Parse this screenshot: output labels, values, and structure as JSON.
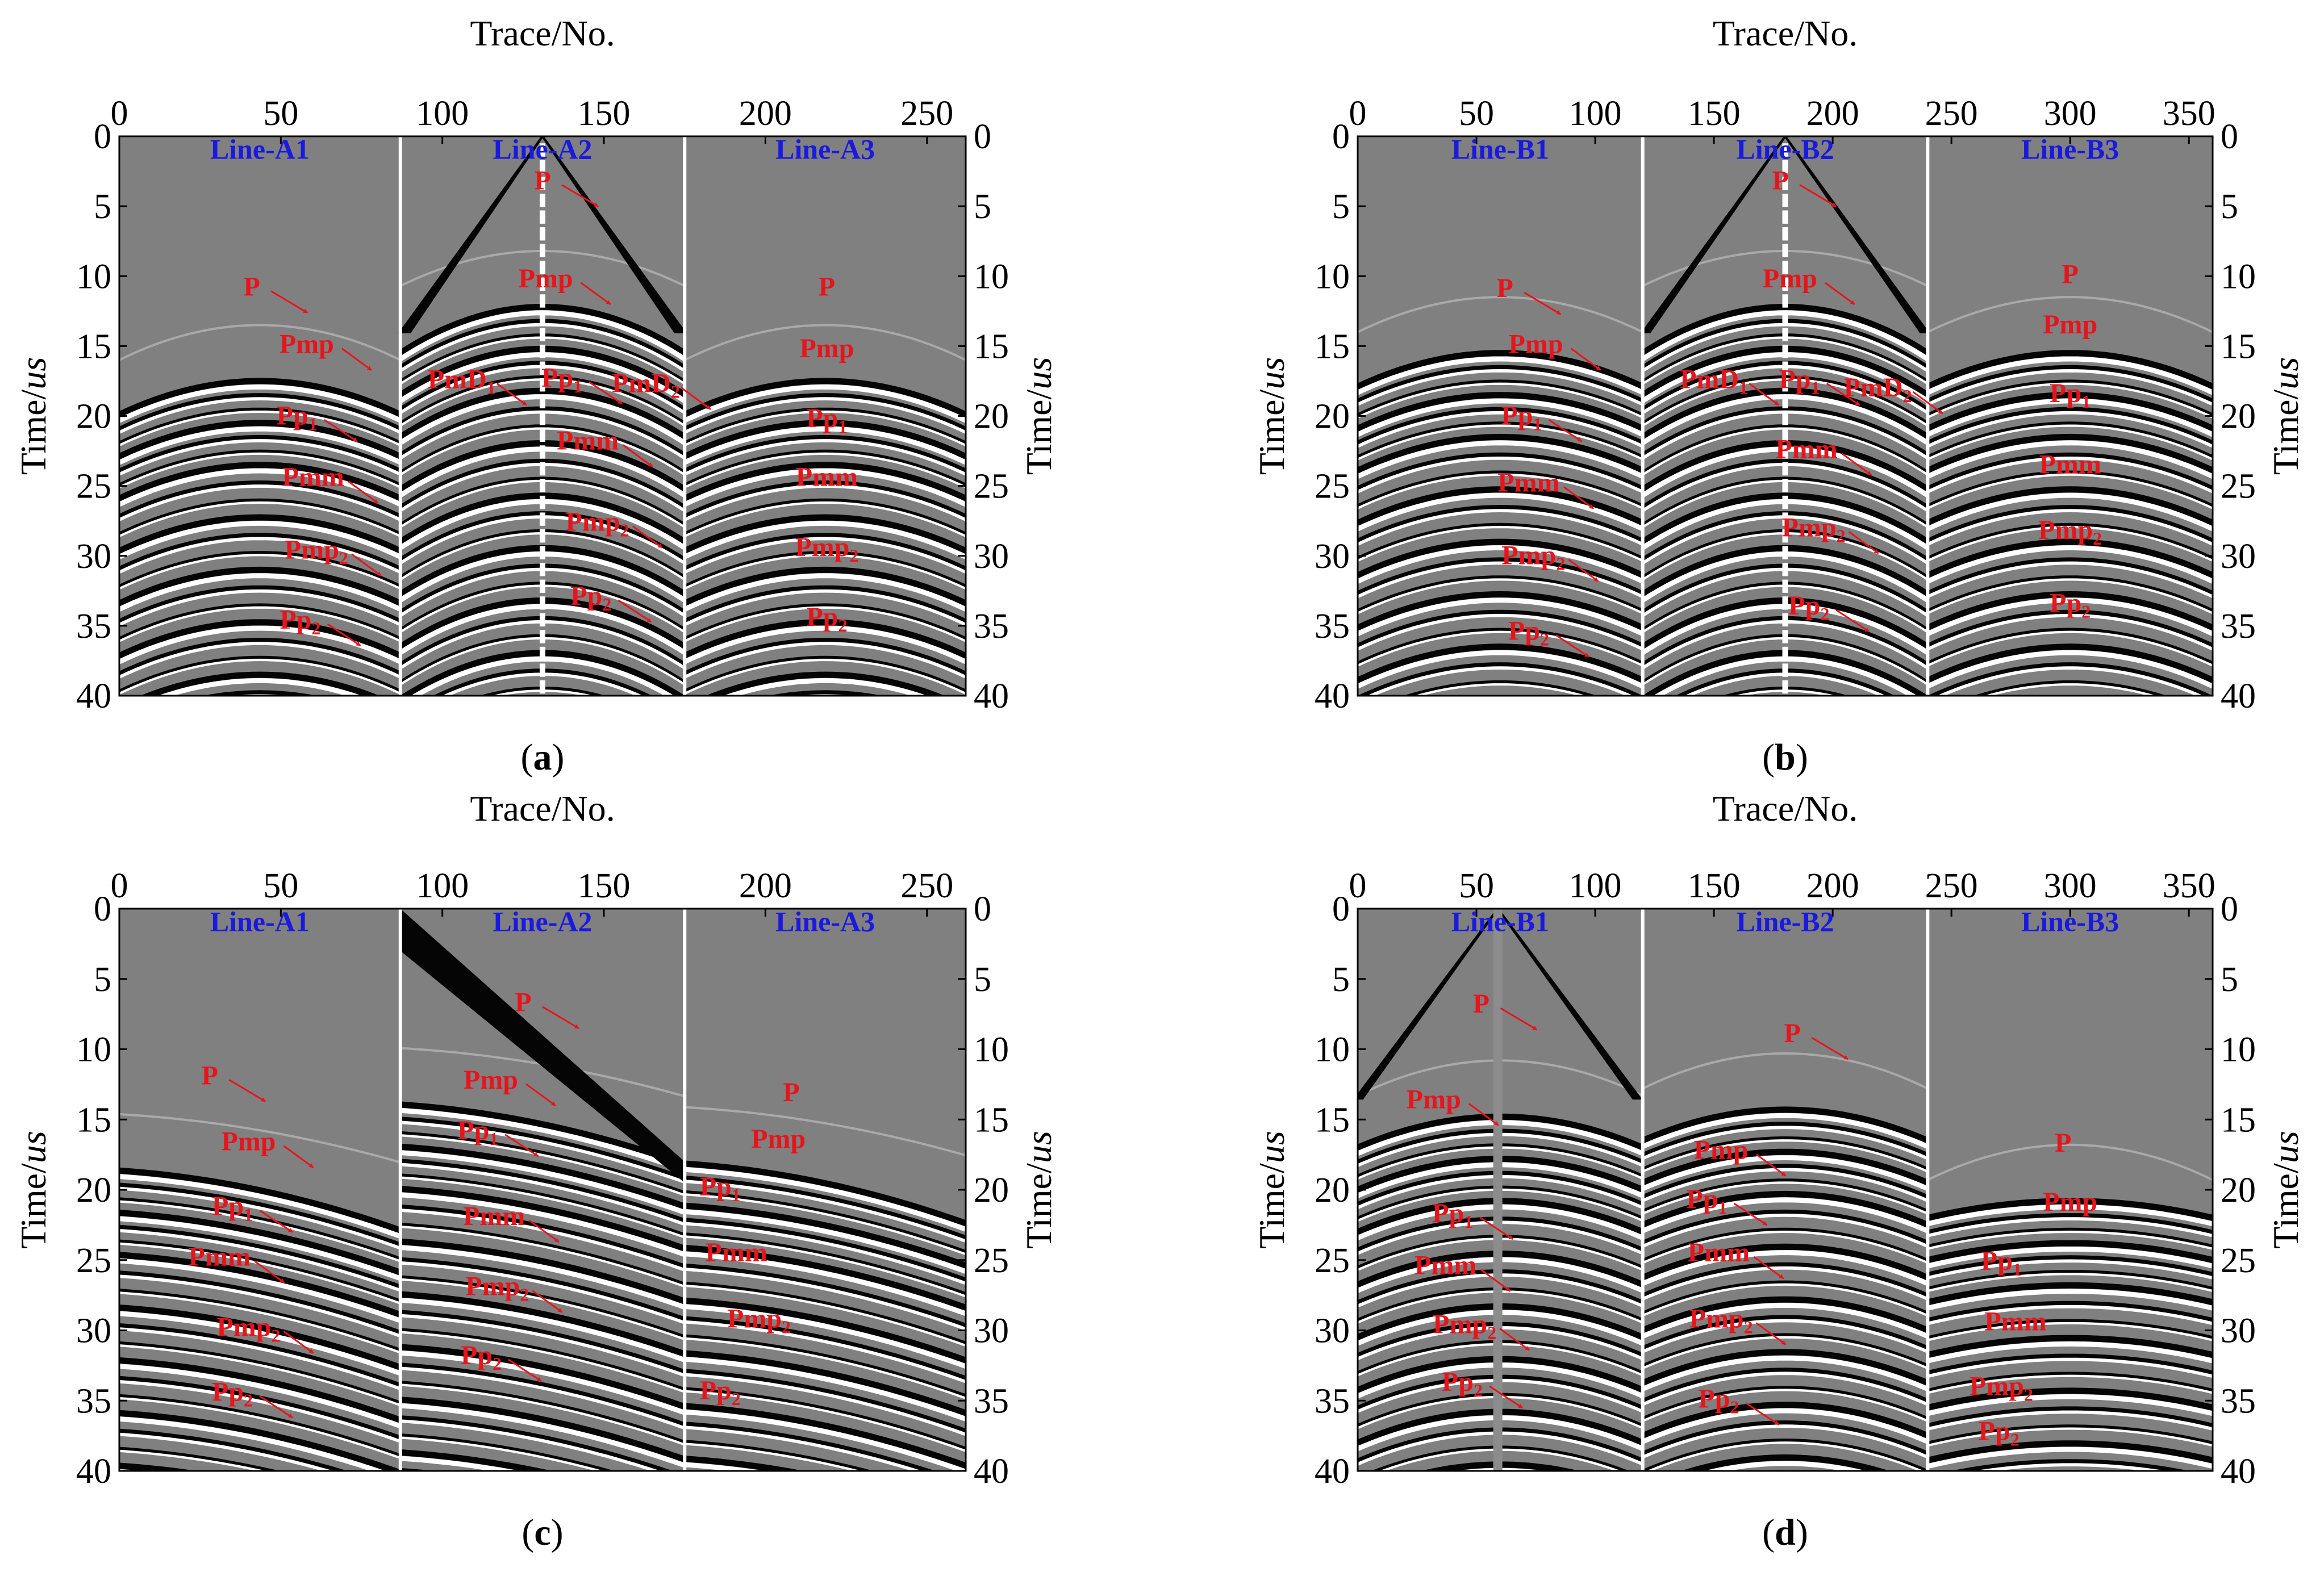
{
  "figure": {
    "axis_titles": {
      "x": "Trace/No.",
      "y_left": "Time/",
      "y_unit": "us",
      "y_right": "Time/",
      "y_right_unit": "us"
    },
    "colors": {
      "wave_dark": "#050505",
      "wave_light": "#ffffff",
      "background_gray": "#808080",
      "annotation_red": "#e8141b",
      "line_label_blue": "#1a1adf",
      "axis": "#000000"
    }
  },
  "chart_data": [
    {
      "type": "heatmap",
      "panel": "(a)",
      "caption_letter": "a",
      "xlabel": "Trace/No.",
      "ylabel": "Time/us",
      "xlim": [
        0,
        262
      ],
      "ylim": [
        40,
        0
      ],
      "xticks": [
        0,
        50,
        100,
        150,
        200,
        250
      ],
      "yticks": [
        0,
        5,
        10,
        15,
        20,
        25,
        30,
        35,
        40
      ],
      "source_mode": "center",
      "lines": [
        {
          "name": "Line-A1",
          "x_range": [
            0,
            87
          ]
        },
        {
          "name": "Line-A2",
          "x_range": [
            87,
            175
          ]
        },
        {
          "name": "Line-A3",
          "x_range": [
            175,
            262
          ]
        }
      ],
      "annotations": [
        {
          "text": "P",
          "sub": "",
          "x": 131,
          "t": 3.8,
          "line": 1,
          "arrow": true
        },
        {
          "text": "P",
          "sub": "",
          "x": 41,
          "t": 11.4,
          "line": 0,
          "arrow": true
        },
        {
          "text": "Pmp",
          "sub": "",
          "x": 58,
          "t": 15.5,
          "line": 0,
          "arrow": true
        },
        {
          "text": "Pp",
          "sub": "1",
          "x": 55,
          "t": 20.6,
          "line": 0,
          "arrow": true
        },
        {
          "text": "Pmm",
          "sub": "",
          "x": 60,
          "t": 25.0,
          "line": 0,
          "arrow": true
        },
        {
          "text": "Pmp",
          "sub": "2",
          "x": 61,
          "t": 30.2,
          "line": 0,
          "arrow": true
        },
        {
          "text": "Pp",
          "sub": "2",
          "x": 56,
          "t": 35.2,
          "line": 0,
          "arrow": true
        },
        {
          "text": "Pmp",
          "sub": "",
          "x": 132,
          "t": 10.8,
          "line": 1,
          "arrow": true
        },
        {
          "text": "PmD",
          "sub": "1",
          "x": 106,
          "t": 18.0,
          "line": 1,
          "arrow": true
        },
        {
          "text": "Pp",
          "sub": "1",
          "x": 137,
          "t": 17.9,
          "line": 1,
          "arrow": true
        },
        {
          "text": "PmD",
          "sub": "2",
          "x": 163,
          "t": 18.3,
          "line": 1,
          "arrow": true
        },
        {
          "text": "Pmm",
          "sub": "",
          "x": 145,
          "t": 22.4,
          "line": 1,
          "arrow": true
        },
        {
          "text": "Pmp",
          "sub": "2",
          "x": 148,
          "t": 28.2,
          "line": 1,
          "arrow": true
        },
        {
          "text": "Pp",
          "sub": "2",
          "x": 146,
          "t": 33.5,
          "line": 1,
          "arrow": true
        },
        {
          "text": "P",
          "sub": "",
          "x": 219,
          "t": 11.4,
          "line": 2,
          "arrow": false
        },
        {
          "text": "Pmp",
          "sub": "",
          "x": 219,
          "t": 15.8,
          "line": 2,
          "arrow": false
        },
        {
          "text": "Pp",
          "sub": "1",
          "x": 219,
          "t": 20.8,
          "line": 2,
          "arrow": false
        },
        {
          "text": "Pmm",
          "sub": "",
          "x": 219,
          "t": 25.0,
          "line": 2,
          "arrow": false
        },
        {
          "text": "Pmp",
          "sub": "2",
          "x": 219,
          "t": 30.0,
          "line": 2,
          "arrow": false
        },
        {
          "text": "Pp",
          "sub": "2",
          "x": 219,
          "t": 35.0,
          "line": 2,
          "arrow": false
        }
      ]
    },
    {
      "type": "heatmap",
      "panel": "(b)",
      "caption_letter": "b",
      "xlabel": "Trace/No.",
      "ylabel": "Time/us",
      "xlim": [
        0,
        360
      ],
      "ylim": [
        40,
        0
      ],
      "xticks": [
        0,
        50,
        100,
        150,
        200,
        250,
        300,
        350
      ],
      "yticks": [
        0,
        5,
        10,
        15,
        20,
        25,
        30,
        35,
        40
      ],
      "source_mode": "center",
      "lines": [
        {
          "name": "Line-B1",
          "x_range": [
            0,
            120
          ]
        },
        {
          "name": "Line-B2",
          "x_range": [
            120,
            240
          ]
        },
        {
          "name": "Line-B3",
          "x_range": [
            240,
            360
          ]
        }
      ],
      "annotations": [
        {
          "text": "P",
          "sub": "",
          "x": 178,
          "t": 3.8,
          "line": 1,
          "arrow": true
        },
        {
          "text": "P",
          "sub": "",
          "x": 62,
          "t": 11.5,
          "line": 0,
          "arrow": true
        },
        {
          "text": "Pmp",
          "sub": "",
          "x": 75,
          "t": 15.5,
          "line": 0,
          "arrow": true
        },
        {
          "text": "Pp",
          "sub": "1",
          "x": 69,
          "t": 20.6,
          "line": 0,
          "arrow": true
        },
        {
          "text": "Pmm",
          "sub": "",
          "x": 72,
          "t": 25.4,
          "line": 0,
          "arrow": true
        },
        {
          "text": "Pmp",
          "sub": "2",
          "x": 74,
          "t": 30.6,
          "line": 0,
          "arrow": true
        },
        {
          "text": "Pp",
          "sub": "2",
          "x": 72,
          "t": 36.0,
          "line": 0,
          "arrow": true
        },
        {
          "text": "Pmp",
          "sub": "",
          "x": 182,
          "t": 10.8,
          "line": 1,
          "arrow": true
        },
        {
          "text": "PmD",
          "sub": "1",
          "x": 150,
          "t": 18.0,
          "line": 1,
          "arrow": true
        },
        {
          "text": "Pp",
          "sub": "1",
          "x": 186,
          "t": 18.0,
          "line": 1,
          "arrow": true
        },
        {
          "text": "PmD",
          "sub": "2",
          "x": 219,
          "t": 18.6,
          "line": 1,
          "arrow": true
        },
        {
          "text": "Pmm",
          "sub": "",
          "x": 189,
          "t": 23.0,
          "line": 1,
          "arrow": true
        },
        {
          "text": "Pmp",
          "sub": "2",
          "x": 192,
          "t": 28.6,
          "line": 1,
          "arrow": true
        },
        {
          "text": "Pp",
          "sub": "2",
          "x": 190,
          "t": 34.2,
          "line": 1,
          "arrow": true
        },
        {
          "text": "P",
          "sub": "",
          "x": 300,
          "t": 10.5,
          "line": 2,
          "arrow": false
        },
        {
          "text": "Pmp",
          "sub": "",
          "x": 300,
          "t": 14.1,
          "line": 2,
          "arrow": false
        },
        {
          "text": "Pp",
          "sub": "1",
          "x": 300,
          "t": 19.0,
          "line": 2,
          "arrow": false
        },
        {
          "text": "Pmm",
          "sub": "",
          "x": 300,
          "t": 24.1,
          "line": 2,
          "arrow": false
        },
        {
          "text": "Pmp",
          "sub": "2",
          "x": 300,
          "t": 28.8,
          "line": 2,
          "arrow": false
        },
        {
          "text": "Pp",
          "sub": "2",
          "x": 300,
          "t": 34.0,
          "line": 2,
          "arrow": false
        }
      ]
    },
    {
      "type": "heatmap",
      "panel": "(c)",
      "caption_letter": "c",
      "xlabel": "Trace/No.",
      "ylabel": "Time/us",
      "xlim": [
        0,
        262
      ],
      "ylim": [
        40,
        0
      ],
      "xticks": [
        0,
        50,
        100,
        150,
        200,
        250
      ],
      "yticks": [
        0,
        5,
        10,
        15,
        20,
        25,
        30,
        35,
        40
      ],
      "source_mode": "left",
      "lines": [
        {
          "name": "Line-A1",
          "x_range": [
            0,
            87
          ]
        },
        {
          "name": "Line-A2",
          "x_range": [
            87,
            175
          ]
        },
        {
          "name": "Line-A3",
          "x_range": [
            175,
            262
          ]
        }
      ],
      "annotations": [
        {
          "text": "P",
          "sub": "",
          "x": 125,
          "t": 7.3,
          "line": 1,
          "arrow": true
        },
        {
          "text": "P",
          "sub": "",
          "x": 28,
          "t": 12.5,
          "line": 0,
          "arrow": true
        },
        {
          "text": "Pmp",
          "sub": "",
          "x": 40,
          "t": 17.2,
          "line": 0,
          "arrow": true
        },
        {
          "text": "Pp",
          "sub": "1",
          "x": 35,
          "t": 21.8,
          "line": 0,
          "arrow": true
        },
        {
          "text": "Pmm",
          "sub": "",
          "x": 31,
          "t": 25.4,
          "line": 0,
          "arrow": true
        },
        {
          "text": "Pmp",
          "sub": "2",
          "x": 40,
          "t": 30.4,
          "line": 0,
          "arrow": true
        },
        {
          "text": "Pp",
          "sub": "2",
          "x": 35,
          "t": 35.0,
          "line": 0,
          "arrow": true
        },
        {
          "text": "Pmp",
          "sub": "",
          "x": 115,
          "t": 12.8,
          "line": 1,
          "arrow": true
        },
        {
          "text": "Pp",
          "sub": "1",
          "x": 111,
          "t": 16.4,
          "line": 1,
          "arrow": true
        },
        {
          "text": "Pmm",
          "sub": "",
          "x": 116,
          "t": 22.5,
          "line": 1,
          "arrow": true
        },
        {
          "text": "Pmp",
          "sub": "2",
          "x": 117,
          "t": 27.5,
          "line": 1,
          "arrow": true
        },
        {
          "text": "Pp",
          "sub": "2",
          "x": 112,
          "t": 32.4,
          "line": 1,
          "arrow": true
        },
        {
          "text": "P",
          "sub": "",
          "x": 208,
          "t": 13.7,
          "line": 2,
          "arrow": false
        },
        {
          "text": "Pmp",
          "sub": "",
          "x": 204,
          "t": 17.0,
          "line": 2,
          "arrow": false
        },
        {
          "text": "Pp",
          "sub": "1",
          "x": 186,
          "t": 20.4,
          "line": 2,
          "arrow": false
        },
        {
          "text": "Pmm",
          "sub": "",
          "x": 191,
          "t": 25.1,
          "line": 2,
          "arrow": false
        },
        {
          "text": "Pmp",
          "sub": "2",
          "x": 198,
          "t": 29.8,
          "line": 2,
          "arrow": false
        },
        {
          "text": "Pp",
          "sub": "2",
          "x": 186,
          "t": 34.9,
          "line": 2,
          "arrow": false
        }
      ]
    },
    {
      "type": "heatmap",
      "panel": "(d)",
      "caption_letter": "d",
      "xlabel": "Trace/No.",
      "ylabel": "Time/us",
      "xlim": [
        0,
        360
      ],
      "ylim": [
        40,
        0
      ],
      "xticks": [
        0,
        50,
        100,
        150,
        200,
        250,
        300,
        350
      ],
      "yticks": [
        0,
        5,
        10,
        15,
        20,
        25,
        30,
        35,
        40
      ],
      "source_mode": "b1",
      "lines": [
        {
          "name": "Line-B1",
          "x_range": [
            0,
            120
          ]
        },
        {
          "name": "Line-B2",
          "x_range": [
            120,
            240
          ]
        },
        {
          "name": "Line-B3",
          "x_range": [
            240,
            360
          ]
        }
      ],
      "annotations": [
        {
          "text": "P",
          "sub": "",
          "x": 52,
          "t": 7.4,
          "line": 0,
          "arrow": true
        },
        {
          "text": "Pmp",
          "sub": "",
          "x": 32,
          "t": 14.2,
          "line": 0,
          "arrow": true
        },
        {
          "text": "Pp",
          "sub": "1",
          "x": 40,
          "t": 22.3,
          "line": 0,
          "arrow": true
        },
        {
          "text": "Pmm",
          "sub": "",
          "x": 37,
          "t": 26.0,
          "line": 0,
          "arrow": true
        },
        {
          "text": "Pmp",
          "sub": "2",
          "x": 45,
          "t": 30.2,
          "line": 0,
          "arrow": true
        },
        {
          "text": "Pp",
          "sub": "2",
          "x": 44,
          "t": 34.3,
          "line": 0,
          "arrow": true
        },
        {
          "text": "P",
          "sub": "",
          "x": 183,
          "t": 9.5,
          "line": 1,
          "arrow": true
        },
        {
          "text": "Pmp",
          "sub": "",
          "x": 153,
          "t": 17.8,
          "line": 1,
          "arrow": true
        },
        {
          "text": "Pp",
          "sub": "1",
          "x": 147,
          "t": 21.3,
          "line": 1,
          "arrow": true
        },
        {
          "text": "Pmm",
          "sub": "",
          "x": 152,
          "t": 25.1,
          "line": 1,
          "arrow": true
        },
        {
          "text": "Pmp",
          "sub": "2",
          "x": 153,
          "t": 29.8,
          "line": 1,
          "arrow": true
        },
        {
          "text": "Pp",
          "sub": "2",
          "x": 152,
          "t": 35.5,
          "line": 1,
          "arrow": true
        },
        {
          "text": "P",
          "sub": "",
          "x": 297,
          "t": 17.3,
          "line": 2,
          "arrow": false
        },
        {
          "text": "Pmp",
          "sub": "",
          "x": 300,
          "t": 21.5,
          "line": 2,
          "arrow": false
        },
        {
          "text": "Pp",
          "sub": "1",
          "x": 271,
          "t": 25.7,
          "line": 2,
          "arrow": false
        },
        {
          "text": "Pmm",
          "sub": "",
          "x": 277,
          "t": 30.0,
          "line": 2,
          "arrow": false
        },
        {
          "text": "Pmp",
          "sub": "2",
          "x": 271,
          "t": 34.6,
          "line": 2,
          "arrow": false
        },
        {
          "text": "Pp",
          "sub": "2",
          "x": 270,
          "t": 37.8,
          "line": 2,
          "arrow": false
        }
      ]
    }
  ]
}
